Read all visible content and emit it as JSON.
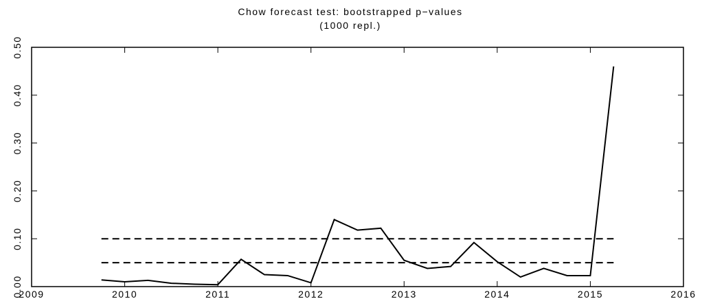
{
  "chart_data": {
    "type": "line",
    "title": "Chow forecast test: bootstrapped p−values",
    "subtitle": "(1000 repl.)",
    "x": [
      2009.75,
      2010.0,
      2010.25,
      2010.5,
      2010.75,
      2011.0,
      2011.25,
      2011.5,
      2011.75,
      2012.0,
      2012.25,
      2012.5,
      2012.75,
      2013.0,
      2013.25,
      2013.5,
      2013.75,
      2014.0,
      2014.25,
      2014.5,
      2014.75,
      2015.0,
      2015.25
    ],
    "series": [
      {
        "color": "#000000",
        "values": [
          0.014,
          0.01,
          0.013,
          0.007,
          0.005,
          0.004,
          0.057,
          0.025,
          0.023,
          0.008,
          0.14,
          0.118,
          0.122,
          0.055,
          0.038,
          0.042,
          0.092,
          0.052,
          0.02,
          0.038,
          0.023,
          0.023,
          0.46
        ]
      }
    ],
    "reference_lines": [
      0.1,
      0.05
    ],
    "xlim": [
      2009,
      2016
    ],
    "xticks": [
      2009,
      2010,
      2011,
      2012,
      2013,
      2014,
      2015,
      2016
    ],
    "ylim": [
      0,
      0.5
    ],
    "yticks": [
      {
        "value": 0,
        "label": "0.00"
      },
      {
        "value": 0.1,
        "label": "0.10"
      },
      {
        "value": 0.2,
        "label": "0.20"
      },
      {
        "value": 0.3,
        "label": "0.30"
      },
      {
        "value": 0.4,
        "label": "0.40"
      },
      {
        "value": 0.5,
        "label": "0.50"
      }
    ]
  }
}
